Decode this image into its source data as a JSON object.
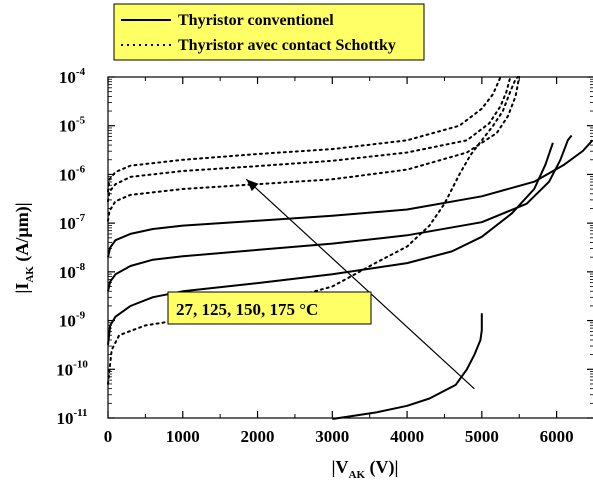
{
  "chart_data": {
    "type": "line",
    "xlabel": {
      "main": "|V",
      "sub": "AK",
      "rest": " (V)|"
    },
    "ylabel": {
      "main": "|I",
      "sub": "AK",
      "rest": " (A/µm)|"
    },
    "xlim": [
      0,
      6500
    ],
    "ylim_log10": [
      -11,
      -4
    ],
    "y_scale": "log",
    "x_ticks": [
      0,
      1000,
      2000,
      3000,
      4000,
      5000,
      6000
    ],
    "y_ticks": [
      {
        "base": "10",
        "exp": "-11",
        "value": -11
      },
      {
        "base": "10",
        "exp": "-10",
        "value": -10
      },
      {
        "base": "10",
        "exp": "-9",
        "value": -9
      },
      {
        "base": "10",
        "exp": "-8",
        "value": -8
      },
      {
        "base": "10",
        "exp": "-7",
        "value": -7
      },
      {
        "base": "10",
        "exp": "-6",
        "value": -6
      },
      {
        "base": "10",
        "exp": "-5",
        "value": -5
      },
      {
        "base": "10",
        "exp": "-4",
        "value": -4
      }
    ],
    "legend": {
      "placement": "top",
      "background": "#ffff66",
      "entries": [
        {
          "label": "Thyristor conventionel",
          "style": "solid"
        },
        {
          "label": "Thyristor avec contact Schottky",
          "style": "dotted"
        }
      ]
    },
    "annotation": {
      "text": "27, 125, 150, 175 °C",
      "background": "#ffff66",
      "arrow_from": [
        4900,
        -10.4
      ],
      "arrow_to": [
        1850,
        -6.1
      ]
    },
    "series": [
      {
        "style": "solid",
        "points": [
          [
            3000,
            -11.02
          ],
          [
            3600,
            -10.88
          ],
          [
            4000,
            -10.75
          ],
          [
            4300,
            -10.6
          ],
          [
            4650,
            -10.32
          ],
          [
            4800,
            -10.0
          ],
          [
            4900,
            -9.7
          ],
          [
            4980,
            -9.4
          ],
          [
            5000,
            -9.2
          ],
          [
            5000,
            -8.85
          ]
        ]
      },
      {
        "style": "solid",
        "points": [
          [
            0,
            -9.5
          ],
          [
            30,
            -9.1
          ],
          [
            100,
            -8.92
          ],
          [
            300,
            -8.7
          ],
          [
            600,
            -8.52
          ],
          [
            1000,
            -8.4
          ],
          [
            2000,
            -8.23
          ],
          [
            3000,
            -8.05
          ],
          [
            4000,
            -7.82
          ],
          [
            4600,
            -7.58
          ],
          [
            5000,
            -7.28
          ],
          [
            5400,
            -6.8
          ],
          [
            5700,
            -6.3
          ],
          [
            5850,
            -5.8
          ],
          [
            5950,
            -5.35
          ]
        ]
      },
      {
        "style": "solid",
        "points": [
          [
            0,
            -8.4
          ],
          [
            30,
            -8.2
          ],
          [
            100,
            -8.05
          ],
          [
            300,
            -7.88
          ],
          [
            600,
            -7.75
          ],
          [
            1000,
            -7.68
          ],
          [
            2000,
            -7.55
          ],
          [
            3000,
            -7.42
          ],
          [
            4000,
            -7.25
          ],
          [
            5000,
            -6.98
          ],
          [
            5600,
            -6.6
          ],
          [
            5900,
            -6.15
          ],
          [
            6050,
            -5.7
          ],
          [
            6150,
            -5.3
          ],
          [
            6200,
            -5.2
          ]
        ]
      },
      {
        "style": "solid",
        "points": [
          [
            0,
            -7.7
          ],
          [
            30,
            -7.5
          ],
          [
            100,
            -7.35
          ],
          [
            300,
            -7.22
          ],
          [
            600,
            -7.12
          ],
          [
            1000,
            -7.05
          ],
          [
            2000,
            -6.95
          ],
          [
            3000,
            -6.85
          ],
          [
            4000,
            -6.72
          ],
          [
            5000,
            -6.45
          ],
          [
            5700,
            -6.15
          ],
          [
            6100,
            -5.8
          ],
          [
            6350,
            -5.52
          ],
          [
            6480,
            -5.3
          ]
        ]
      },
      {
        "style": "dotted",
        "points": [
          [
            0,
            -10.3
          ],
          [
            50,
            -9.6
          ],
          [
            150,
            -9.3
          ],
          [
            500,
            -9.1
          ],
          [
            1000,
            -8.98
          ],
          [
            2000,
            -8.72
          ],
          [
            3000,
            -8.3
          ],
          [
            3600,
            -7.8
          ],
          [
            4000,
            -7.48
          ],
          [
            4300,
            -7.05
          ],
          [
            4500,
            -6.6
          ],
          [
            4700,
            -6.0
          ],
          [
            4850,
            -5.6
          ],
          [
            5000,
            -5.3
          ],
          [
            5150,
            -5.0
          ],
          [
            5280,
            -4.7
          ],
          [
            5380,
            -4.3
          ],
          [
            5450,
            -4.05
          ],
          [
            5480,
            -4.0
          ]
        ]
      },
      {
        "style": "dotted",
        "points": [
          [
            0,
            -6.95
          ],
          [
            20,
            -6.75
          ],
          [
            100,
            -6.55
          ],
          [
            300,
            -6.42
          ],
          [
            1000,
            -6.3
          ],
          [
            2000,
            -6.2
          ],
          [
            3000,
            -6.1
          ],
          [
            4000,
            -5.9
          ],
          [
            4800,
            -5.55
          ],
          [
            5200,
            -5.15
          ],
          [
            5350,
            -4.8
          ],
          [
            5450,
            -4.4
          ],
          [
            5500,
            -4.0
          ]
        ]
      },
      {
        "style": "dotted",
        "points": [
          [
            0,
            -6.55
          ],
          [
            20,
            -6.35
          ],
          [
            100,
            -6.2
          ],
          [
            300,
            -6.05
          ],
          [
            1000,
            -5.93
          ],
          [
            2000,
            -5.83
          ],
          [
            3000,
            -5.72
          ],
          [
            4000,
            -5.55
          ],
          [
            4800,
            -5.3
          ],
          [
            5100,
            -4.95
          ],
          [
            5250,
            -4.6
          ],
          [
            5330,
            -4.3
          ],
          [
            5380,
            -4.0
          ]
        ]
      },
      {
        "style": "dotted",
        "points": [
          [
            0,
            -6.35
          ],
          [
            20,
            -6.1
          ],
          [
            100,
            -5.95
          ],
          [
            300,
            -5.82
          ],
          [
            1000,
            -5.7
          ],
          [
            2000,
            -5.58
          ],
          [
            3000,
            -5.48
          ],
          [
            4000,
            -5.3
          ],
          [
            4700,
            -5.0
          ],
          [
            5000,
            -4.65
          ],
          [
            5150,
            -4.35
          ],
          [
            5250,
            -4.0
          ]
        ]
      }
    ]
  }
}
